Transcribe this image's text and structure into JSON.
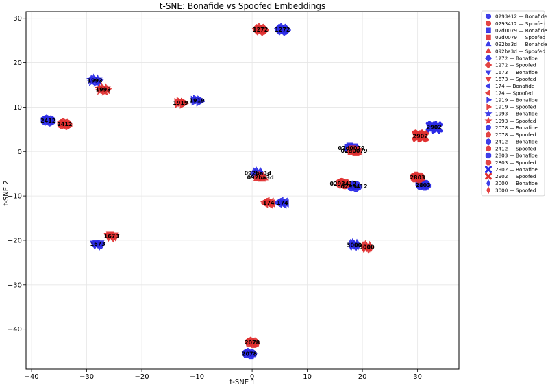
{
  "chart_data": {
    "type": "scatter",
    "title": "t-SNE: Bonafide vs Spoofed Embeddings",
    "xlabel": "t-SNE 1",
    "ylabel": "t-SNE 2",
    "xlim": [
      -41,
      37.5
    ],
    "ylim": [
      -49,
      31.5
    ],
    "xticks": [
      -40,
      -30,
      -20,
      -10,
      0,
      10,
      20,
      30
    ],
    "yticks": [
      -40,
      -30,
      -20,
      -10,
      0,
      10,
      20,
      30
    ],
    "grid": true,
    "legend_position": "outside-right",
    "colors": {
      "Bonafide": "#2a2ae6",
      "Spoofed": "#e03030"
    },
    "series": [
      {
        "name": "0293412 — Bonafide",
        "marker": "circle",
        "points": [
          [
            18.5,
            -7.8
          ]
        ],
        "label": "0293412"
      },
      {
        "name": "0293412 — Spoofed",
        "marker": "circle",
        "points": [
          [
            16.5,
            -7.2
          ]
        ],
        "label": "0293412"
      },
      {
        "name": "02d0079 — Bonafide",
        "marker": "square",
        "points": [
          [
            18.0,
            0.8
          ]
        ],
        "label": "02d0079"
      },
      {
        "name": "02d0079 — Spoofed",
        "marker": "square",
        "points": [
          [
            18.5,
            0.2
          ]
        ],
        "label": "02d0079"
      },
      {
        "name": "092ba3d — Bonafide",
        "marker": "triangle-up",
        "points": [
          [
            1.0,
            -4.8
          ]
        ],
        "label": "092ba3d"
      },
      {
        "name": "092ba3d — Spoofed",
        "marker": "triangle-up",
        "points": [
          [
            1.5,
            -5.8
          ]
        ],
        "label": "092ba3d"
      },
      {
        "name": "1272 — Bonafide",
        "marker": "diamond",
        "points": [
          [
            5.5,
            27.5
          ]
        ],
        "label": "1272"
      },
      {
        "name": "1272 — Spoofed",
        "marker": "diamond",
        "points": [
          [
            1.5,
            27.5
          ]
        ],
        "label": "1272"
      },
      {
        "name": "1673 — Bonafide",
        "marker": "triangle-down",
        "points": [
          [
            -28.0,
            -20.8
          ]
        ],
        "label": "1673"
      },
      {
        "name": "1673 — Spoofed",
        "marker": "triangle-down",
        "points": [
          [
            -25.5,
            -19.0
          ]
        ],
        "label": "1673"
      },
      {
        "name": "174 — Bonafide",
        "marker": "triangle-left",
        "points": [
          [
            5.5,
            -11.5
          ]
        ],
        "label": "174"
      },
      {
        "name": "174 — Spoofed",
        "marker": "triangle-left",
        "points": [
          [
            3.0,
            -11.5
          ]
        ],
        "label": "174"
      },
      {
        "name": "1919 — Bonafide",
        "marker": "triangle-right",
        "points": [
          [
            -10.0,
            11.5
          ]
        ],
        "label": "1919"
      },
      {
        "name": "1919 — Spoofed",
        "marker": "triangle-right",
        "points": [
          [
            -13.0,
            11.0
          ]
        ],
        "label": "1919"
      },
      {
        "name": "1993 — Bonafide",
        "marker": "star",
        "points": [
          [
            -28.5,
            16.0
          ]
        ],
        "label": "1993"
      },
      {
        "name": "1993 — Spoofed",
        "marker": "star",
        "points": [
          [
            -27.0,
            14.0
          ]
        ],
        "label": "1993"
      },
      {
        "name": "2078 — Bonafide",
        "marker": "pentagon",
        "points": [
          [
            -0.5,
            -45.5
          ]
        ],
        "label": "2078"
      },
      {
        "name": "2078 — Spoofed",
        "marker": "pentagon",
        "points": [
          [
            0.0,
            -43.0
          ]
        ],
        "label": "2078"
      },
      {
        "name": "2412 — Bonafide",
        "marker": "hexagon",
        "points": [
          [
            -37.0,
            7.0
          ]
        ],
        "label": "2412"
      },
      {
        "name": "2412 — Spoofed",
        "marker": "hexagon",
        "points": [
          [
            -34.0,
            6.2
          ]
        ],
        "label": "2412"
      },
      {
        "name": "2803 — Bonafide",
        "marker": "octagon",
        "points": [
          [
            31.0,
            -7.5
          ]
        ],
        "label": "2803"
      },
      {
        "name": "2803 — Spoofed",
        "marker": "octagon",
        "points": [
          [
            30.0,
            -5.8
          ]
        ],
        "label": "2803"
      },
      {
        "name": "2902 — Bonafide",
        "marker": "x",
        "points": [
          [
            33.0,
            5.5
          ]
        ],
        "label": "2902"
      },
      {
        "name": "2902 — Spoofed",
        "marker": "x",
        "points": [
          [
            30.5,
            3.5
          ]
        ],
        "label": "2902"
      },
      {
        "name": "3000 — Bonafide",
        "marker": "thin-diamond",
        "points": [
          [
            18.5,
            -21.0
          ]
        ],
        "label": "3000"
      },
      {
        "name": "3000 — Spoofed",
        "marker": "thin-diamond",
        "points": [
          [
            20.8,
            -21.5
          ]
        ],
        "label": "3000"
      }
    ]
  }
}
